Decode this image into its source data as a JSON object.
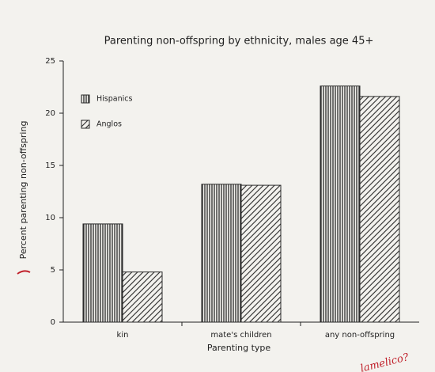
{
  "chart_data": {
    "type": "bar",
    "title": "Parenting non-offspring by ethnicity, males age 45+",
    "x_label": "Parenting type",
    "y_label": "Percent parenting non-offspring",
    "categories": [
      "kin",
      "mate's children",
      "any non-offspring"
    ],
    "series": [
      {
        "name": "Hispanics",
        "color": "#2a2a2a",
        "pattern": "vertical",
        "values": [
          9.4,
          13.2,
          22.6
        ]
      },
      {
        "name": "Anglos",
        "color": "#2a2a2a",
        "pattern": "diagonal",
        "values": [
          4.8,
          13.1,
          21.6
        ]
      }
    ],
    "ylim": [
      0,
      25
    ],
    "yticks": [
      0,
      5,
      10,
      15,
      20,
      25
    ],
    "annotation": "lamelico?"
  }
}
